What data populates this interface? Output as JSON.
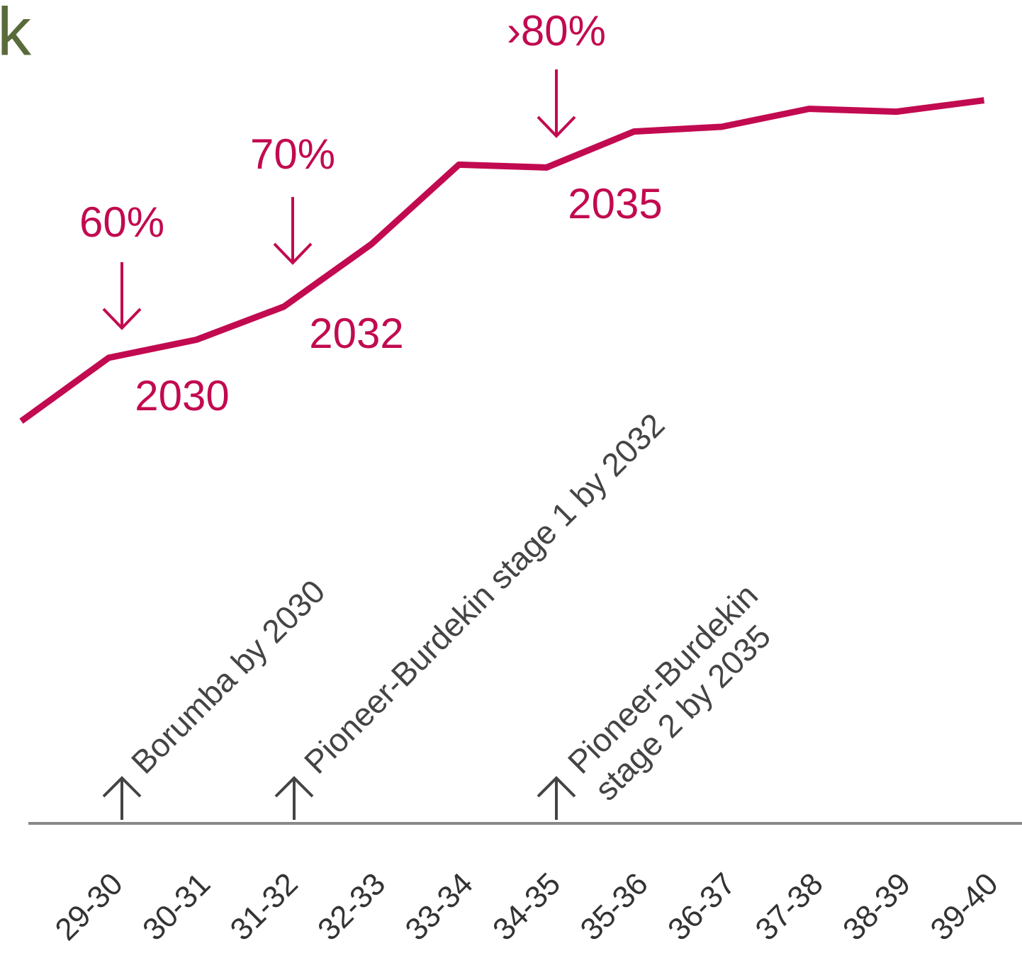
{
  "chart_data": {
    "type": "line",
    "title": "k",
    "categories": [
      null,
      "29-30",
      "30-31",
      "31-32",
      "32-33",
      "33-34",
      "34-35",
      "35-36",
      "36-37",
      "37-38",
      "38-39",
      "39-40"
    ],
    "series": [
      {
        "name": null,
        "color": "#c20a50",
        "values": [
          52.5,
          59.2,
          61.1,
          64.6,
          71.2,
          79.6,
          79.3,
          83.1,
          83.6,
          85.5,
          85.2,
          86.4
        ]
      }
    ],
    "ylim": [
      10,
      97
    ],
    "annotations": [
      {
        "text": "60%",
        "category": "29-30"
      },
      {
        "text": "70%",
        "category": "31-32"
      },
      {
        "text": "›80%",
        "category": "34-35"
      }
    ],
    "year_labels": [
      "2030",
      "2032",
      "2035"
    ],
    "milestones": [
      {
        "lines": [
          "Borumba by 2030"
        ]
      },
      {
        "lines": [
          "Pioneer-Burdekin stage 1 by 2032"
        ]
      },
      {
        "lines": [
          "Pioneer-Burdekin",
          "stage 2 by 2035"
        ]
      }
    ]
  }
}
